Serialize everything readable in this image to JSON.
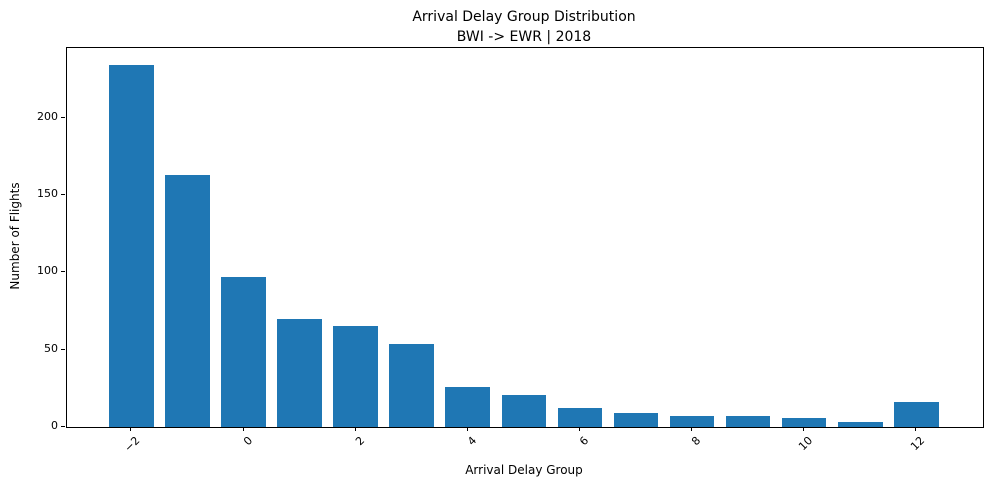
{
  "chart_data": {
    "type": "bar",
    "title": "Arrival Delay Group Distribution",
    "subtitle": "BWI -> EWR | 2018",
    "xlabel": "Arrival Delay Group",
    "ylabel": "Number of Flights",
    "categories": [
      -2,
      -1,
      0,
      1,
      2,
      3,
      4,
      5,
      6,
      7,
      8,
      9,
      10,
      11,
      12
    ],
    "values": [
      234,
      163,
      97,
      70,
      65,
      54,
      26,
      21,
      12,
      9,
      7,
      7,
      6,
      3,
      16
    ],
    "yticks": [
      0,
      50,
      100,
      150,
      200
    ],
    "xtick_labels": [
      {
        "value": -2,
        "label": "−2"
      },
      {
        "value": 0,
        "label": "0"
      },
      {
        "value": 2,
        "label": "2"
      },
      {
        "value": 4,
        "label": "4"
      },
      {
        "value": 6,
        "label": "6"
      },
      {
        "value": 8,
        "label": "8"
      },
      {
        "value": 10,
        "label": "10"
      },
      {
        "value": 12,
        "label": "12"
      }
    ],
    "xtick_rotation": 45,
    "ylim": [
      0,
      245
    ],
    "xlim": [
      -3.15,
      13.19
    ],
    "bar_width": 0.8,
    "grid": false,
    "legend": null,
    "colors": {
      "bar": "#1f77b4",
      "text": "#000000",
      "spine": "#000000",
      "background": "#ffffff"
    }
  }
}
